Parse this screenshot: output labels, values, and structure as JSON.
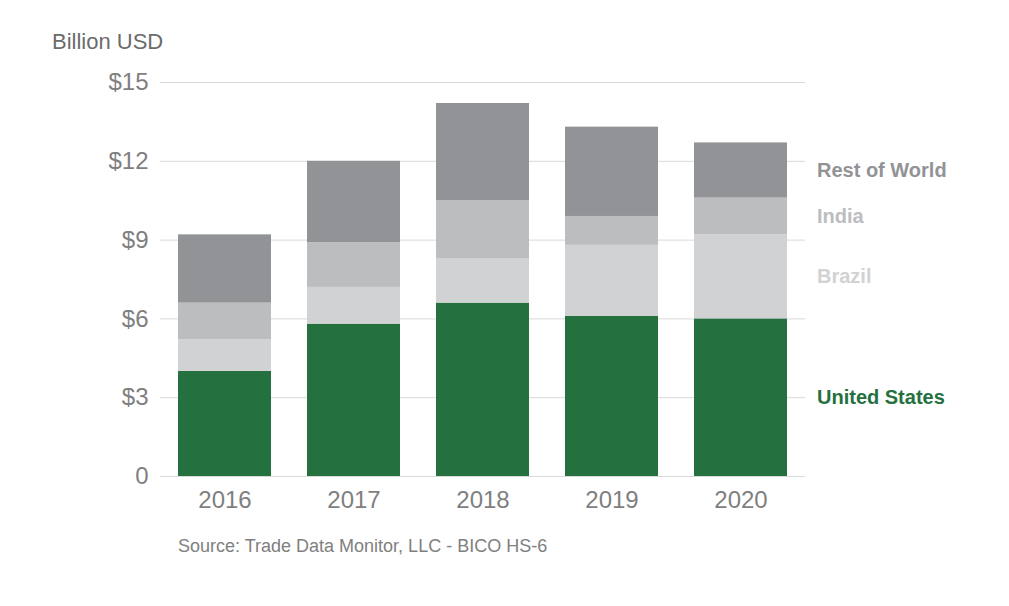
{
  "chart_data": {
    "type": "bar",
    "stacked": true,
    "ylabel": "Billion USD",
    "caption": "Source: Trade Data Monitor, LLC - BICO HS-6",
    "categories": [
      "2016",
      "2017",
      "2018",
      "2019",
      "2020"
    ],
    "series": [
      {
        "name": "United States",
        "color": "#25703f",
        "values": [
          4.0,
          5.8,
          6.6,
          6.1,
          6.0
        ]
      },
      {
        "name": "Brazil",
        "color": "#d1d2d4",
        "values": [
          1.2,
          1.4,
          1.7,
          2.7,
          3.2
        ]
      },
      {
        "name": "India",
        "color": "#bcbdbf",
        "values": [
          1.4,
          1.7,
          2.2,
          1.1,
          1.4
        ]
      },
      {
        "name": "Rest of World",
        "color": "#929396",
        "values": [
          2.6,
          3.1,
          3.7,
          3.4,
          2.1
        ]
      }
    ],
    "ylim": [
      0,
      15
    ],
    "yticks": [
      0,
      {
        "value": 3,
        "label": "$3"
      },
      {
        "value": 6,
        "label": "$6"
      },
      {
        "value": 9,
        "label": "$9"
      },
      {
        "value": 12,
        "label": "$12"
      },
      {
        "value": 15,
        "label": "$15"
      }
    ],
    "grid": true,
    "legend": "right"
  }
}
